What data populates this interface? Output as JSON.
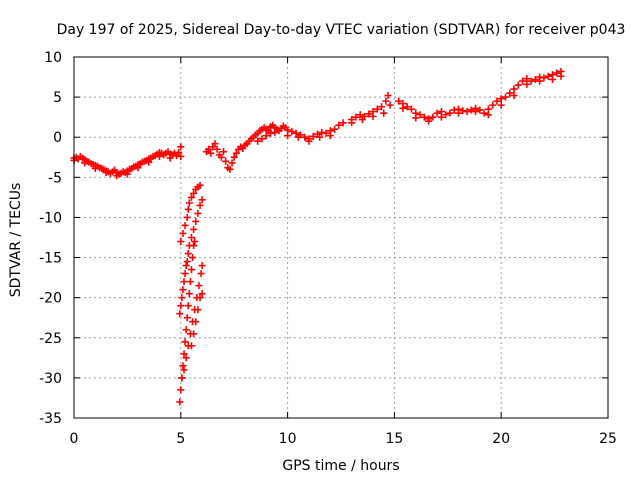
{
  "chart_data": {
    "type": "scatter",
    "title": "Day 197 of 2025, Sidereal Day-to-day VTEC variation (SDTVAR) for receiver p043",
    "xlabel": "GPS time / hours",
    "ylabel": "SDTVAR / TECUs",
    "xlim": [
      0,
      25
    ],
    "ylim": [
      -35,
      10
    ],
    "xticks": [
      0,
      5,
      10,
      15,
      20,
      25
    ],
    "xtick_labels": [
      "0",
      "5",
      "10",
      "15",
      "20",
      "25"
    ],
    "yticks": [
      -35,
      -30,
      -25,
      -20,
      -15,
      -10,
      -5,
      0,
      5,
      10
    ],
    "ytick_labels": [
      "-35",
      "-30",
      "-25",
      "-20",
      "-15",
      "-10",
      "-5",
      "0",
      "5",
      "10"
    ],
    "grid": true,
    "marker": "plus",
    "series": [
      {
        "name": "SDTVAR",
        "color": "#ff0000",
        "segments": [
          [
            [
              0.0,
              -2.6
            ],
            [
              0.1,
              -2.5
            ],
            [
              0.2,
              -2.7
            ],
            [
              0.3,
              -2.4
            ],
            [
              0.4,
              -2.6
            ],
            [
              0.5,
              -2.8
            ],
            [
              0.6,
              -3.0
            ],
            [
              0.7,
              -3.1
            ],
            [
              0.8,
              -3.3
            ],
            [
              0.9,
              -3.4
            ],
            [
              1.0,
              -3.5
            ],
            [
              1.1,
              -3.6
            ],
            [
              1.2,
              -3.8
            ],
            [
              1.3,
              -3.9
            ],
            [
              1.4,
              -4.0
            ],
            [
              1.5,
              -4.2
            ],
            [
              1.6,
              -4.3
            ],
            [
              1.7,
              -4.5
            ],
            [
              1.8,
              -4.3
            ],
            [
              1.9,
              -4.1
            ],
            [
              2.0,
              -4.4
            ],
            [
              2.1,
              -4.6
            ],
            [
              2.2,
              -4.5
            ],
            [
              2.3,
              -4.3
            ],
            [
              2.4,
              -4.4
            ],
            [
              2.5,
              -4.2
            ],
            [
              2.6,
              -4.0
            ],
            [
              2.7,
              -3.9
            ],
            [
              2.8,
              -3.7
            ],
            [
              2.9,
              -3.6
            ],
            [
              3.0,
              -3.4
            ],
            [
              3.1,
              -3.3
            ],
            [
              3.2,
              -3.1
            ],
            [
              3.3,
              -3.0
            ],
            [
              3.4,
              -2.9
            ],
            [
              3.5,
              -2.7
            ],
            [
              3.6,
              -2.6
            ],
            [
              3.7,
              -2.4
            ],
            [
              3.8,
              -2.3
            ],
            [
              3.9,
              -2.1
            ],
            [
              4.0,
              -1.9
            ],
            [
              4.1,
              -2.0
            ],
            [
              4.2,
              -2.2
            ],
            [
              4.3,
              -2.0
            ],
            [
              4.4,
              -1.8
            ],
            [
              4.5,
              -2.1
            ],
            [
              4.6,
              -2.2
            ],
            [
              4.7,
              -2.0
            ],
            [
              4.8,
              -2.3
            ],
            [
              4.9,
              -1.9
            ],
            [
              5.0,
              -1.2
            ],
            [
              0.0,
              -2.9
            ],
            [
              0.5,
              -3.2
            ],
            [
              1.0,
              -3.9
            ],
            [
              1.5,
              -4.4
            ],
            [
              2.0,
              -4.8
            ],
            [
              2.5,
              -4.6
            ],
            [
              3.0,
              -3.8
            ],
            [
              3.5,
              -3.1
            ],
            [
              4.0,
              -2.4
            ],
            [
              4.5,
              -2.6
            ],
            [
              5.0,
              -2.4
            ]
          ],
          [
            [
              5.0,
              -13.0
            ],
            [
              5.1,
              -12.0
            ],
            [
              5.2,
              -11.0
            ],
            [
              5.3,
              -10.0
            ],
            [
              5.35,
              -9.0
            ],
            [
              5.4,
              -8.2
            ],
            [
              5.5,
              -7.5
            ],
            [
              5.6,
              -7.0
            ],
            [
              5.7,
              -6.5
            ],
            [
              5.8,
              -6.2
            ],
            [
              5.9,
              -6.0
            ]
          ],
          [
            [
              4.95,
              -22.0
            ],
            [
              5.0,
              -21.0
            ],
            [
              5.05,
              -20.0
            ],
            [
              5.1,
              -19.0
            ],
            [
              5.15,
              -18.0
            ],
            [
              5.2,
              -17.0
            ],
            [
              5.25,
              -16.0
            ],
            [
              5.3,
              -15.5
            ],
            [
              5.35,
              -14.5
            ],
            [
              5.4,
              -13.5
            ],
            [
              5.5,
              -12.5
            ],
            [
              5.6,
              -11.5
            ],
            [
              5.7,
              -10.5
            ],
            [
              5.8,
              -9.5
            ],
            [
              5.9,
              -8.5
            ],
            [
              6.0,
              -7.8
            ]
          ],
          [
            [
              4.95,
              -33.0
            ],
            [
              5.0,
              -31.5
            ],
            [
              5.05,
              -30.0
            ],
            [
              5.1,
              -28.5
            ],
            [
              5.15,
              -27.0
            ],
            [
              5.2,
              -25.5
            ],
            [
              5.25,
              -24.0
            ],
            [
              5.3,
              -22.5
            ],
            [
              5.35,
              -21.0
            ],
            [
              5.4,
              -19.5
            ],
            [
              5.45,
              -18.0
            ],
            [
              5.5,
              -16.5
            ],
            [
              5.55,
              -15.0
            ],
            [
              5.6,
              -13.5
            ],
            [
              5.65,
              -13.0
            ]
          ],
          [
            [
              5.05,
              -30.0
            ],
            [
              5.15,
              -29.0
            ],
            [
              5.25,
              -27.5
            ],
            [
              5.35,
              -26.0
            ],
            [
              5.45,
              -24.5
            ],
            [
              5.55,
              -23.0
            ],
            [
              5.65,
              -21.5
            ],
            [
              5.75,
              -20.0
            ],
            [
              5.85,
              -18.5
            ],
            [
              5.95,
              -17.0
            ],
            [
              6.0,
              -16.0
            ],
            [
              5.5,
              -26.0
            ],
            [
              5.6,
              -24.5
            ],
            [
              5.7,
              -23.0
            ],
            [
              5.8,
              -21.5
            ],
            [
              5.9,
              -20.0
            ],
            [
              6.0,
              -19.5
            ]
          ],
          [
            [
              6.2,
              -1.8
            ],
            [
              6.3,
              -1.5
            ],
            [
              6.4,
              -2.0
            ],
            [
              6.5,
              -1.2
            ],
            [
              6.6,
              -0.8
            ],
            [
              6.7,
              -1.5
            ],
            [
              6.8,
              -2.2
            ],
            [
              6.9,
              -2.5
            ],
            [
              7.0,
              -1.8
            ],
            [
              7.1,
              -3.0
            ],
            [
              7.2,
              -3.8
            ],
            [
              7.3,
              -4.0
            ],
            [
              7.4,
              -3.2
            ],
            [
              7.5,
              -2.5
            ],
            [
              7.6,
              -2.0
            ],
            [
              7.7,
              -1.5
            ],
            [
              7.8,
              -1.2
            ],
            [
              7.9,
              -1.4
            ],
            [
              8.0,
              -1.0
            ],
            [
              8.1,
              -0.8
            ],
            [
              8.2,
              -0.5
            ],
            [
              8.3,
              -0.2
            ],
            [
              8.4,
              0.0
            ],
            [
              8.5,
              0.3
            ],
            [
              8.6,
              0.5
            ],
            [
              8.7,
              0.8
            ],
            [
              8.8,
              1.0
            ],
            [
              8.9,
              1.2
            ],
            [
              9.0,
              1.0
            ],
            [
              9.1,
              0.8
            ],
            [
              9.2,
              1.3
            ],
            [
              9.3,
              1.5
            ],
            [
              9.4,
              1.2
            ],
            [
              9.5,
              1.0
            ],
            [
              9.6,
              0.8
            ],
            [
              9.7,
              1.1
            ],
            [
              9.8,
              1.4
            ],
            [
              9.9,
              1.2
            ],
            [
              10.0,
              0.9
            ],
            [
              10.2,
              0.7
            ],
            [
              10.4,
              0.5
            ],
            [
              10.6,
              0.3
            ],
            [
              10.8,
              0.0
            ],
            [
              11.0,
              -0.2
            ],
            [
              11.2,
              0.1
            ],
            [
              11.4,
              0.4
            ],
            [
              11.6,
              0.6
            ],
            [
              11.8,
              0.5
            ],
            [
              12.0,
              0.8
            ],
            [
              12.2,
              1.0
            ],
            [
              12.4,
              1.5
            ],
            [
              12.6,
              1.8
            ],
            [
              8.6,
              -0.5
            ],
            [
              8.8,
              -0.2
            ],
            [
              9.0,
              0.2
            ],
            [
              9.2,
              0.5
            ],
            [
              9.4,
              0.6
            ],
            [
              10.0,
              0.2
            ],
            [
              10.5,
              0.0
            ],
            [
              11.0,
              -0.5
            ],
            [
              11.5,
              0.0
            ],
            [
              12.0,
              0.2
            ]
          ],
          [
            [
              13.0,
              2.2
            ],
            [
              13.2,
              2.5
            ],
            [
              13.4,
              2.8
            ],
            [
              13.6,
              2.6
            ],
            [
              13.8,
              2.9
            ],
            [
              14.0,
              3.2
            ],
            [
              14.2,
              3.5
            ],
            [
              14.4,
              3.8
            ],
            [
              14.6,
              4.5
            ],
            [
              14.7,
              5.2
            ],
            [
              14.8,
              4.0
            ],
            [
              13.0,
              1.8
            ],
            [
              13.5,
              2.2
            ],
            [
              14.0,
              2.6
            ],
            [
              14.5,
              3.0
            ]
          ],
          [
            [
              15.2,
              4.5
            ],
            [
              15.4,
              4.2
            ],
            [
              15.6,
              3.8
            ],
            [
              15.8,
              3.5
            ],
            [
              16.0,
              3.0
            ],
            [
              16.2,
              2.8
            ],
            [
              16.4,
              2.5
            ],
            [
              16.6,
              2.3
            ],
            [
              16.8,
              2.5
            ],
            [
              17.0,
              3.0
            ],
            [
              17.2,
              3.2
            ],
            [
              17.4,
              2.8
            ],
            [
              17.6,
              3.0
            ],
            [
              17.8,
              3.4
            ],
            [
              18.0,
              3.5
            ],
            [
              18.2,
              3.3
            ],
            [
              18.4,
              3.2
            ],
            [
              18.6,
              3.4
            ],
            [
              18.8,
              3.6
            ],
            [
              19.0,
              3.4
            ],
            [
              19.2,
              3.0
            ],
            [
              19.4,
              3.5
            ],
            [
              19.6,
              4.0
            ],
            [
              19.8,
              4.5
            ],
            [
              20.0,
              4.8
            ],
            [
              20.2,
              5.0
            ],
            [
              20.4,
              5.5
            ],
            [
              20.6,
              6.0
            ],
            [
              20.8,
              6.5
            ],
            [
              21.0,
              7.0
            ],
            [
              21.2,
              7.3
            ],
            [
              21.4,
              7.0
            ],
            [
              21.6,
              7.2
            ],
            [
              21.8,
              7.5
            ],
            [
              22.0,
              7.4
            ],
            [
              22.2,
              7.6
            ],
            [
              22.4,
              7.8
            ],
            [
              22.6,
              8.0
            ],
            [
              22.8,
              8.2
            ],
            [
              15.4,
              3.6
            ],
            [
              16.0,
              2.4
            ],
            [
              16.6,
              2.0
            ],
            [
              17.2,
              2.5
            ],
            [
              18.0,
              3.0
            ],
            [
              18.8,
              3.2
            ],
            [
              19.4,
              2.8
            ],
            [
              20.0,
              4.0
            ],
            [
              20.6,
              5.2
            ],
            [
              21.2,
              6.6
            ],
            [
              21.8,
              7.0
            ],
            [
              22.4,
              7.2
            ],
            [
              22.8,
              7.6
            ]
          ]
        ]
      }
    ]
  }
}
